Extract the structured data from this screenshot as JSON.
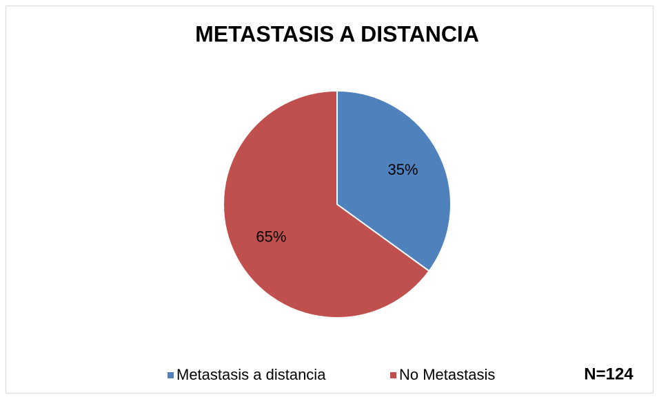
{
  "chart_data": {
    "type": "pie",
    "title": "METASTASIS A DISTANCIA",
    "categories": [
      "Metastasis a distancia",
      "No Metastasis"
    ],
    "values": [
      35,
      65
    ],
    "value_labels": [
      "35%",
      "65%"
    ],
    "colors": [
      "#4f81bd",
      "#c0504d"
    ],
    "legend": "bottom",
    "annotation": "N=124"
  }
}
